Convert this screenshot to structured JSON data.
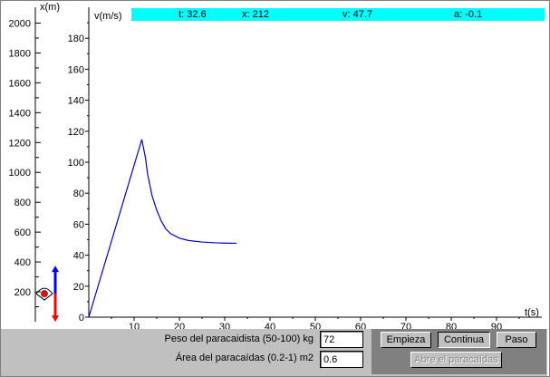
{
  "status": {
    "t": "t: 32.6",
    "x": "x: 212",
    "v": "v: 47.7",
    "a": "a: -0.1"
  },
  "left_axis": {
    "label": "x(m)",
    "ticks": [
      "2000",
      "1800",
      "1600",
      "1400",
      "1200",
      "1000",
      "800",
      "600",
      "400",
      "200"
    ]
  },
  "chart_data": {
    "type": "line",
    "xlabel": "t(s)",
    "ylabel": "v(m/s)",
    "xlim": [
      0,
      100
    ],
    "ylim": [
      0,
      200
    ],
    "x_ticks": [
      "10",
      "20",
      "30",
      "40",
      "50",
      "60",
      "70",
      "80",
      "90"
    ],
    "y_ticks": [
      "0",
      "20",
      "40",
      "60",
      "80",
      "100",
      "120",
      "140",
      "160",
      "180"
    ],
    "series": [
      {
        "color": "#0000cc",
        "x": [
          0,
          11.7,
          12.5,
          13,
          14,
          15,
          16,
          17,
          18,
          20,
          22,
          25,
          28,
          30,
          32.6
        ],
        "y": [
          0,
          114.7,
          103,
          92,
          78,
          69,
          62,
          57,
          54,
          51,
          49.5,
          48.5,
          48,
          47.8,
          47.7
        ]
      }
    ]
  },
  "parachutist": {
    "position_m": 212,
    "up_arrow_color": "#0000ff",
    "down_arrow_color": "#ff0000"
  },
  "controls": {
    "weight_label": "Peso del paracaidista (50-100) kg",
    "weight_value": "72",
    "area_label": "Área del paracaídas (0.2-1) m2",
    "area_value": "0.6",
    "start_label": "Empieza",
    "continue_label": "Continua",
    "step_label": "Paso",
    "open_label": "Abre el paracaídas"
  }
}
